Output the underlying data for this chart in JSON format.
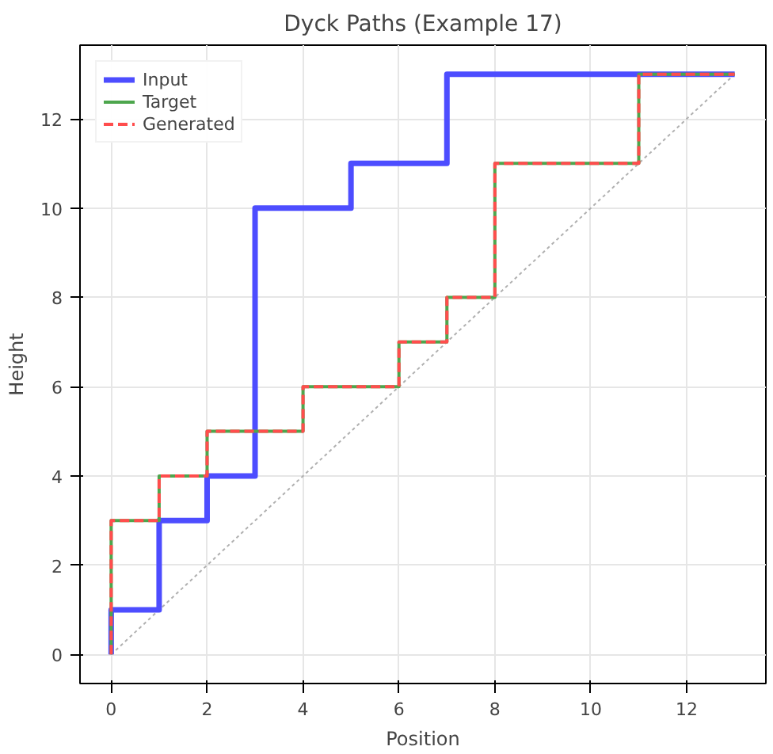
{
  "chart_data": {
    "type": "step",
    "title": "Dyck Paths (Example 17)",
    "xlabel": "Position",
    "ylabel": "Height",
    "xlim": [
      -0.65,
      13.65
    ],
    "ylim": [
      -0.65,
      13.65
    ],
    "xticks": [
      0,
      2,
      4,
      6,
      8,
      10,
      12
    ],
    "yticks": [
      0,
      2,
      4,
      6,
      8,
      10,
      12
    ],
    "grid": true,
    "legend": "top left",
    "marker": "none",
    "series": [
      {
        "type": "line",
        "color": "#b0b0b0",
        "line_style": "dotted",
        "x": [
          0,
          13
        ],
        "values": [
          0,
          13
        ]
      },
      {
        "name": "Input",
        "color": "#4d4dff",
        "line_style": "solid",
        "x": [
          0,
          0,
          1,
          2,
          3,
          4,
          5,
          6,
          7,
          8,
          9,
          10,
          11,
          12,
          13
        ],
        "values": [
          0,
          1,
          3,
          4,
          10,
          10,
          11,
          11,
          13,
          13,
          13,
          13,
          13,
          13,
          13
        ]
      },
      {
        "name": "Target",
        "color": "#4da64d",
        "line_style": "solid",
        "x": [
          0,
          0,
          1,
          2,
          3,
          4,
          5,
          6,
          7,
          8,
          9,
          10,
          11,
          12,
          13
        ],
        "values": [
          0,
          3,
          4,
          5,
          5,
          6,
          6,
          7,
          8,
          11,
          11,
          11,
          13,
          13,
          13
        ]
      },
      {
        "name": "Generated",
        "color": "#ff4d4d",
        "line_style": "dashed",
        "x": [
          0,
          0,
          1,
          2,
          3,
          4,
          5,
          6,
          7,
          8,
          9,
          10,
          11,
          12,
          13
        ],
        "values": [
          0,
          3,
          4,
          5,
          5,
          6,
          6,
          7,
          8,
          11,
          11,
          11,
          13,
          13,
          13
        ]
      }
    ]
  }
}
